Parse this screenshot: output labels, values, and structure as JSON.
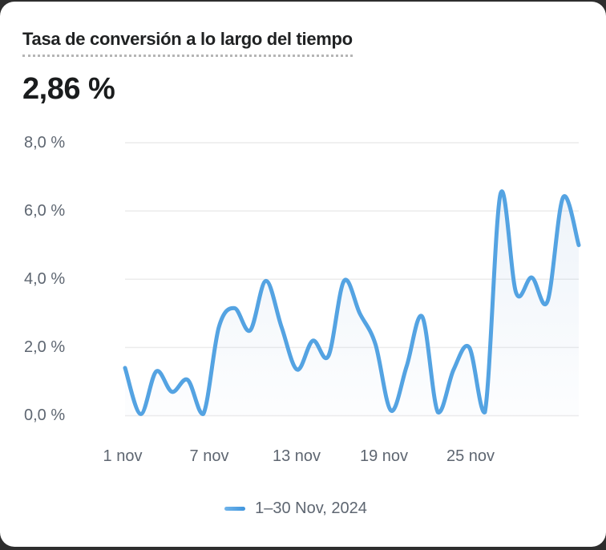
{
  "header": {
    "title": "Tasa de conversión a lo largo del tiempo",
    "kpi_value": "2,86 %"
  },
  "legend": {
    "label": "1–30 Nov, 2024"
  },
  "colors": {
    "line": "#54a3e2",
    "area_fill": "#82aad7",
    "grid": "#ececec",
    "axis_text": "#5e6671",
    "title_text": "#202223",
    "card_bg": "#ffffff",
    "backdrop": "#2e2e2e"
  },
  "chart_data": {
    "type": "line",
    "title": "Tasa de conversión a lo largo del tiempo",
    "x_unit": "day of November 2024",
    "x": [
      1,
      2,
      3,
      4,
      5,
      6,
      7,
      8,
      9,
      10,
      11,
      12,
      13,
      14,
      15,
      16,
      17,
      18,
      19,
      20,
      21,
      22,
      23,
      24,
      25,
      26,
      27,
      28,
      29,
      30
    ],
    "series": [
      {
        "name": "1–30 Nov, 2024",
        "values": [
          1.4,
          0.05,
          1.3,
          0.7,
          1.05,
          0.05,
          2.6,
          3.15,
          2.5,
          3.95,
          2.6,
          1.35,
          2.2,
          1.75,
          3.95,
          3.0,
          2.1,
          0.15,
          1.45,
          2.9,
          0.1,
          1.35,
          2.0,
          0.1,
          6.5,
          3.6,
          4.05,
          3.35,
          6.4,
          5.0
        ]
      }
    ],
    "ylim": [
      0,
      8
    ],
    "y_tick_labels": [
      "8,0 %",
      "6,0 %",
      "4,0 %",
      "2,0 %",
      "0,0 %"
    ],
    "x_tick_labels": [
      "1 nov",
      "7 nov",
      "13 nov",
      "19 nov",
      "25 nov"
    ],
    "grid": "horizontal",
    "legend_position": "bottom"
  }
}
